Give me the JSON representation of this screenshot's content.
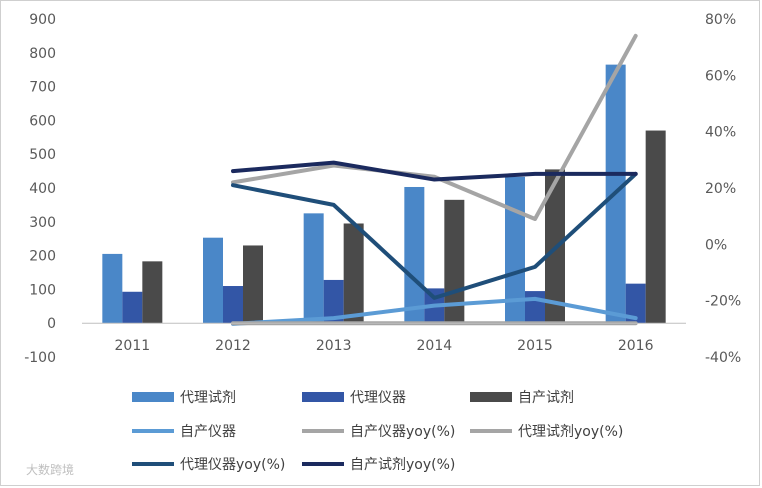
{
  "chart_data": {
    "type": "bar",
    "categories": [
      "2011",
      "2012",
      "2013",
      "2014",
      "2015",
      "2016"
    ],
    "ylim": [
      -100,
      900
    ],
    "y_ticks": [
      "900",
      "800",
      "700",
      "600",
      "500",
      "400",
      "300",
      "200",
      "100",
      "0",
      "-100"
    ],
    "y2lim": [
      -40,
      80
    ],
    "y2_ticks": [
      "80%",
      "60%",
      "40%",
      "20%",
      "0%",
      "-20%",
      "-40%"
    ],
    "series": [
      {
        "name": "代理试剂",
        "kind": "bar",
        "axis": "left",
        "color": "#4A87C8",
        "values": [
          205,
          253,
          325,
          403,
          433,
          765
        ]
      },
      {
        "name": "代理仪器",
        "kind": "bar",
        "axis": "left",
        "color": "#3356A6",
        "values": [
          93,
          110,
          128,
          103,
          95,
          117
        ]
      },
      {
        "name": "自产试剂",
        "kind": "bar",
        "axis": "left",
        "color": "#4A4A4A",
        "values": [
          183,
          230,
          295,
          365,
          455,
          570
        ]
      },
      {
        "name": "自产仪器",
        "kind": "line",
        "axis": "left",
        "color": "#5B9BD5",
        "values": [
          null,
          -2,
          15,
          52,
          72,
          15
        ]
      },
      {
        "name": "自产仪器yoy(%)",
        "kind": "line",
        "axis": "right",
        "color": "#A5A5A5",
        "values": [
          null,
          22,
          28,
          24,
          9,
          74
        ]
      },
      {
        "name": "代理试剂yoy(%)",
        "kind": "line",
        "axis": "right",
        "color": "#A5A5A5",
        "values": [
          null,
          -28,
          -28,
          -28,
          -28,
          -28
        ]
      },
      {
        "name": "代理仪器yoy(%)",
        "kind": "line",
        "axis": "right",
        "color": "#1F4E79",
        "values": [
          null,
          21,
          14,
          -19,
          -8,
          25
        ]
      },
      {
        "name": "自产试剂yoy(%)",
        "kind": "line",
        "axis": "right",
        "color": "#1B2A5E",
        "values": [
          null,
          26,
          29,
          23,
          25,
          25
        ]
      }
    ],
    "grid": false,
    "legend_position": "bottom"
  },
  "watermark": "大数跨境"
}
